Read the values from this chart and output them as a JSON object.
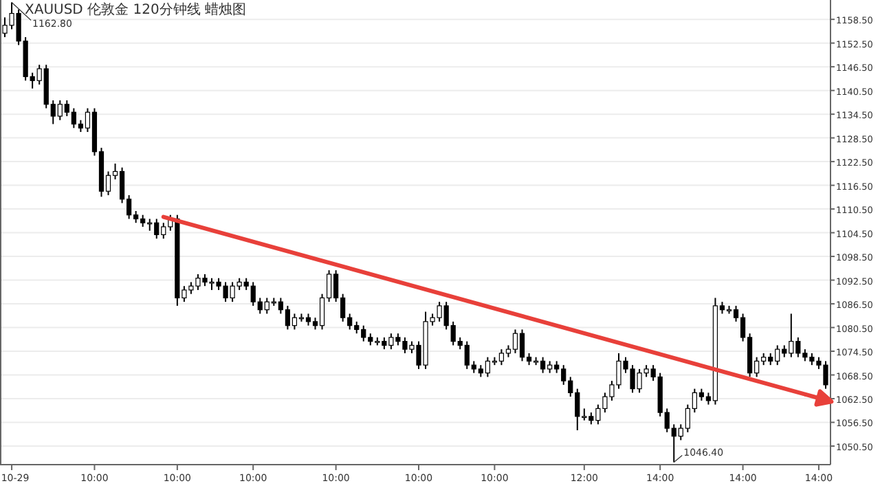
{
  "chart_data": {
    "type": "candlestick",
    "title": "XAUUSD 伦敦金 120分钟线 蜡烛图",
    "categories": [
      null,
      "10-29",
      null,
      null,
      null,
      null,
      null,
      null,
      null,
      null,
      null,
      null,
      null,
      "10:00",
      null,
      null,
      null,
      null,
      null,
      null,
      null,
      null,
      null,
      null,
      null,
      "10:00",
      null,
      null,
      null,
      null,
      null,
      null,
      null,
      null,
      null,
      null,
      "10:00",
      null,
      null,
      null,
      null,
      null,
      null,
      null,
      null,
      null,
      null,
      null,
      "10:00",
      null,
      null,
      null,
      null,
      null,
      null,
      null,
      null,
      null,
      null,
      null,
      "10:00",
      null,
      null,
      null,
      null,
      null,
      null,
      null,
      null,
      null,
      null,
      "10:00",
      null,
      null,
      null,
      null,
      null,
      null,
      null,
      null,
      null,
      null,
      null,
      null,
      "12:00",
      null,
      null,
      null,
      null,
      null,
      null,
      null,
      null,
      null,
      null,
      "14:00",
      null,
      null,
      null,
      null,
      null,
      null,
      null,
      null,
      null,
      null,
      null,
      "14:00",
      null,
      null,
      null,
      null,
      null,
      null,
      null,
      null,
      null,
      null,
      "14:00",
      null
    ],
    "ohlc": [
      [
        1155,
        1159,
        1154,
        1157
      ],
      [
        1157,
        1162.8,
        1156,
        1160
      ],
      [
        1160,
        1161,
        1152,
        1153
      ],
      [
        1153,
        1154,
        1143,
        1144
      ],
      [
        1144,
        1145,
        1141,
        1143
      ],
      [
        1143,
        1147,
        1142,
        1146
      ],
      [
        1146,
        1147,
        1136,
        1137
      ],
      [
        1137,
        1138,
        1132,
        1134
      ],
      [
        1134,
        1138,
        1133,
        1137
      ],
      [
        1137,
        1138,
        1134,
        1135
      ],
      [
        1135,
        1136,
        1131,
        1132
      ],
      [
        1132,
        1133,
        1130,
        1131
      ],
      [
        1131,
        1136,
        1130,
        1135
      ],
      [
        1135,
        1136,
        1124,
        1125
      ],
      [
        1125,
        1126,
        1113.6,
        1115
      ],
      [
        1115,
        1120,
        1114,
        1119
      ],
      [
        1119,
        1122,
        1118,
        1120
      ],
      [
        1120,
        1121,
        1112,
        1113
      ],
      [
        1113,
        1114,
        1108,
        1109
      ],
      [
        1109,
        1110,
        1107,
        1108
      ],
      [
        1108,
        1109,
        1106,
        1107
      ],
      [
        1107,
        1108,
        1105,
        1107
      ],
      [
        1107,
        1108,
        1103,
        1104
      ],
      [
        1104,
        1107,
        1103,
        1106
      ],
      [
        1106,
        1109,
        1105,
        1108
      ],
      [
        1108,
        1109,
        1086,
        1088
      ],
      [
        1088,
        1091,
        1087,
        1090
      ],
      [
        1090,
        1092,
        1089,
        1091
      ],
      [
        1091,
        1094,
        1090,
        1093
      ],
      [
        1093,
        1094,
        1091,
        1092
      ],
      [
        1092,
        1093,
        1090,
        1092
      ],
      [
        1092,
        1093,
        1090,
        1091
      ],
      [
        1091,
        1092,
        1087,
        1088
      ],
      [
        1088,
        1092,
        1087,
        1091
      ],
      [
        1091,
        1093,
        1090,
        1092
      ],
      [
        1092,
        1093,
        1090,
        1091
      ],
      [
        1091,
        1092,
        1086,
        1087
      ],
      [
        1087,
        1088,
        1084,
        1085
      ],
      [
        1085,
        1088,
        1084,
        1087
      ],
      [
        1087,
        1088,
        1086,
        1087
      ],
      [
        1087,
        1088,
        1084,
        1085
      ],
      [
        1085,
        1086,
        1080,
        1081
      ],
      [
        1081,
        1084,
        1080,
        1083
      ],
      [
        1083,
        1084,
        1082,
        1083
      ],
      [
        1083,
        1084,
        1081,
        1082
      ],
      [
        1082,
        1083,
        1080,
        1081
      ],
      [
        1081,
        1089,
        1080,
        1088
      ],
      [
        1088,
        1095,
        1087,
        1094
      ],
      [
        1094,
        1095,
        1087,
        1088
      ],
      [
        1088,
        1089,
        1082,
        1083
      ],
      [
        1083,
        1084,
        1080,
        1081
      ],
      [
        1081,
        1082,
        1079,
        1080
      ],
      [
        1080,
        1081,
        1077,
        1078
      ],
      [
        1078,
        1079,
        1076,
        1077
      ],
      [
        1077,
        1078,
        1076,
        1077
      ],
      [
        1077,
        1078,
        1075,
        1076
      ],
      [
        1076,
        1079,
        1075,
        1078
      ],
      [
        1078,
        1079,
        1076,
        1077
      ],
      [
        1077,
        1078,
        1074,
        1075
      ],
      [
        1075,
        1077,
        1074,
        1076
      ],
      [
        1076,
        1077,
        1070,
        1071
      ],
      [
        1071,
        1084.5,
        1070,
        1082
      ],
      [
        1082,
        1084,
        1081,
        1083
      ],
      [
        1083,
        1087,
        1082,
        1086
      ],
      [
        1086,
        1087,
        1080,
        1081
      ],
      [
        1081,
        1082,
        1076,
        1077
      ],
      [
        1077,
        1078,
        1075,
        1076
      ],
      [
        1076,
        1077,
        1070,
        1071
      ],
      [
        1071,
        1072,
        1069,
        1070
      ],
      [
        1070,
        1071,
        1068,
        1069
      ],
      [
        1069,
        1073,
        1068,
        1072
      ],
      [
        1072,
        1073,
        1071,
        1072
      ],
      [
        1072,
        1075,
        1071,
        1074
      ],
      [
        1074,
        1076,
        1073,
        1075
      ],
      [
        1075,
        1080,
        1074,
        1079
      ],
      [
        1079,
        1080,
        1072,
        1073
      ],
      [
        1073,
        1074,
        1071,
        1072
      ],
      [
        1072,
        1073,
        1071,
        1072
      ],
      [
        1072,
        1073,
        1069,
        1070
      ],
      [
        1070,
        1072,
        1069,
        1071
      ],
      [
        1071,
        1072,
        1069,
        1070
      ],
      [
        1070,
        1071,
        1066,
        1067
      ],
      [
        1067,
        1068,
        1063,
        1064
      ],
      [
        1064,
        1065,
        1054.5,
        1058
      ],
      [
        1058,
        1060,
        1057,
        1058
      ],
      [
        1058,
        1059,
        1056,
        1057
      ],
      [
        1057,
        1061,
        1056,
        1060
      ],
      [
        1060,
        1064,
        1059,
        1063
      ],
      [
        1063,
        1067,
        1062,
        1066
      ],
      [
        1066,
        1074,
        1065,
        1072
      ],
      [
        1072,
        1073,
        1069,
        1070
      ],
      [
        1070,
        1071,
        1064,
        1065
      ],
      [
        1065,
        1070,
        1064,
        1069
      ],
      [
        1069,
        1071,
        1068,
        1070
      ],
      [
        1070,
        1071,
        1067,
        1068
      ],
      [
        1068,
        1069,
        1058,
        1059
      ],
      [
        1059,
        1060,
        1054,
        1055
      ],
      [
        1055,
        1056,
        1046.4,
        1053
      ],
      [
        1053,
        1056,
        1052,
        1055
      ],
      [
        1055,
        1061,
        1054,
        1060
      ],
      [
        1060,
        1065,
        1059,
        1064
      ],
      [
        1064,
        1065,
        1062,
        1063
      ],
      [
        1063,
        1064,
        1061,
        1062
      ],
      [
        1062,
        1088,
        1061,
        1086
      ],
      [
        1086,
        1087,
        1084,
        1085
      ],
      [
        1085,
        1086,
        1084,
        1085
      ],
      [
        1085,
        1086,
        1082,
        1083
      ],
      [
        1083,
        1084,
        1077,
        1078
      ],
      [
        1078,
        1079,
        1068,
        1069
      ],
      [
        1069,
        1073,
        1068,
        1072
      ],
      [
        1072,
        1074,
        1071,
        1073
      ],
      [
        1073,
        1074,
        1071,
        1072
      ],
      [
        1072,
        1076,
        1071,
        1075
      ],
      [
        1075,
        1076,
        1073,
        1074
      ],
      [
        1074,
        1084,
        1073,
        1077
      ],
      [
        1077,
        1078,
        1073,
        1074
      ],
      [
        1074,
        1075,
        1072,
        1073
      ],
      [
        1073,
        1074,
        1071,
        1072
      ],
      [
        1072,
        1073,
        1070,
        1071
      ],
      [
        1071,
        1072,
        1065,
        1066
      ]
    ],
    "color": "#000000",
    "series": [
      {
        "type": "line",
        "values": [
          null,
          null,
          null,
          null,
          null,
          null,
          null,
          null,
          null,
          null,
          null,
          null,
          null,
          null,
          null,
          null,
          null,
          null,
          null,
          null,
          null,
          null,
          null,
          1108.5,
          null,
          null,
          null,
          null,
          null,
          null,
          null,
          null,
          null,
          null,
          null,
          null,
          null,
          null,
          null,
          null,
          null,
          null,
          null,
          null,
          null,
          null,
          null,
          null,
          null,
          null,
          null,
          null,
          null,
          null,
          null,
          null,
          null,
          null,
          null,
          null,
          null,
          null,
          null,
          null,
          null,
          null,
          null,
          null,
          null,
          null,
          null,
          null,
          null,
          null,
          null,
          null,
          null,
          null,
          null,
          null,
          null,
          null,
          null,
          null,
          null,
          null,
          null,
          null,
          null,
          null,
          null,
          null,
          null,
          null,
          null,
          null,
          null,
          null,
          null,
          null,
          null,
          null,
          null,
          null,
          null,
          null,
          null,
          null,
          null,
          null,
          null,
          null,
          null,
          null,
          null,
          null,
          1063.6,
          null,
          null,
          null
        ],
        "color": "#e8403a"
      }
    ],
    "annotations": [
      "1162.80",
      "1046.40"
    ],
    "ylim": [
      1045.8,
      1163.4
    ],
    "yticks": [
      {
        "value": 1050.5,
        "label": "1050.50"
      },
      {
        "value": 1056.5,
        "label": "1056.50"
      },
      {
        "value": 1062.5,
        "label": "1062.50"
      },
      {
        "value": 1068.5,
        "label": "1068.50"
      },
      {
        "value": 1074.5,
        "label": "1074.50"
      },
      {
        "value": 1080.5,
        "label": "1080.50"
      },
      {
        "value": 1086.5,
        "label": "1086.50"
      },
      {
        "value": 1092.5,
        "label": "1092.50"
      },
      {
        "value": 1098.5,
        "label": "1098.50"
      },
      {
        "value": 1104.5,
        "label": "1104.50"
      },
      {
        "value": 1110.5,
        "label": "1110.50"
      },
      {
        "value": 1116.5,
        "label": "1116.50"
      },
      {
        "value": 1122.5,
        "label": "1122.50"
      },
      {
        "value": 1128.5,
        "label": "1128.50"
      },
      {
        "value": 1134.5,
        "label": "1134.50"
      },
      {
        "value": 1140.5,
        "label": "1140.50"
      },
      {
        "value": 1146.5,
        "label": "1146.50"
      },
      {
        "value": 1152.5,
        "label": "1152.50"
      },
      {
        "value": 1158.5,
        "label": "1158.50"
      }
    ],
    "grid": "y"
  }
}
